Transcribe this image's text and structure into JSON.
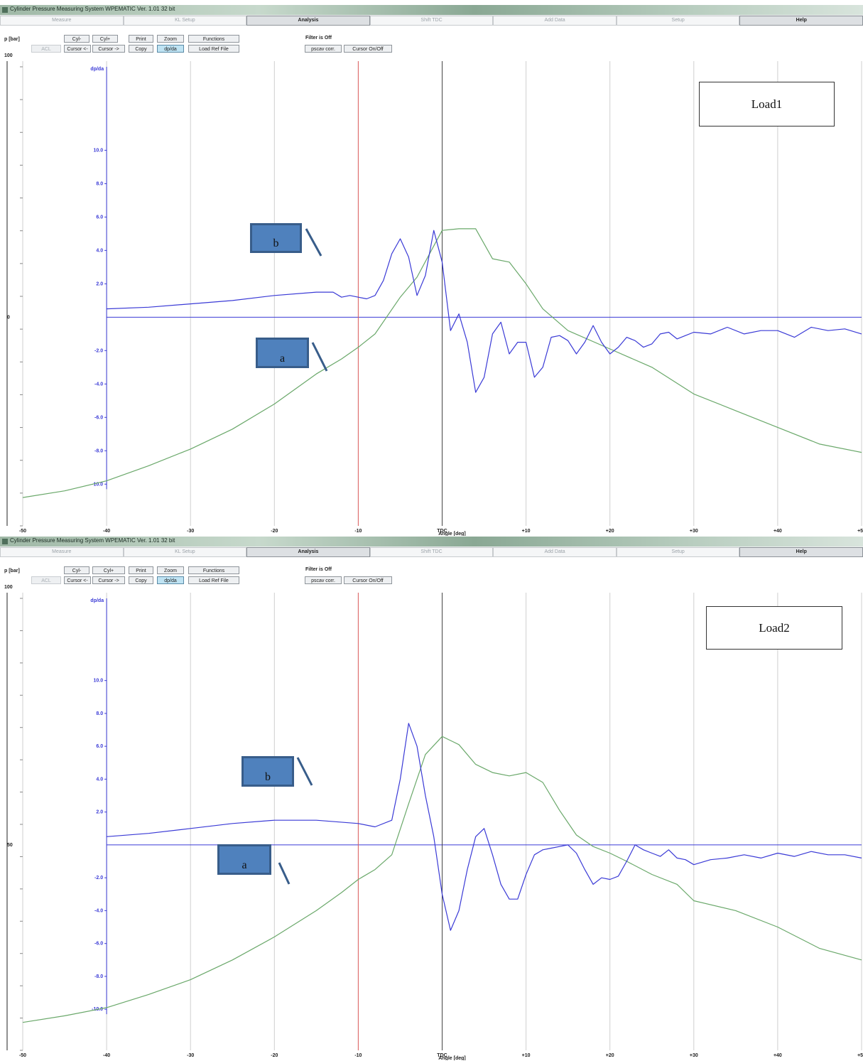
{
  "window_title": "Cylinder Pressure Measuring System WPEMATIC Ver. 1.01 32 bit",
  "tabs": [
    "Measure",
    "KL Setup",
    "Analysis",
    "Shift TDC",
    "Add Data",
    "Setup",
    "Help"
  ],
  "active_tab": "Analysis",
  "toolbar": {
    "y_label": "p [bar]",
    "y_max": "100",
    "buttons_row1": [
      "Cyl-",
      "Cyl+",
      "Print",
      "Zoom",
      "Functions"
    ],
    "buttons_row2": [
      "ACL",
      "Cursor <-",
      "Cursor ->",
      "Copy",
      "dp/da",
      "Load Ref File"
    ],
    "filter_label": "Filter is Off",
    "buttons_row3": [
      "pscav corr.",
      "Cursor On/Off"
    ]
  },
  "chart_data": [
    {
      "type": "line",
      "legend_box": "Load1",
      "xlabel": "Angle [deg]",
      "x_ticks": [
        "-50",
        "-40",
        "-30",
        "-20",
        "-10",
        "TDC",
        "+10",
        "+20",
        "+30",
        "+40",
        "+50"
      ],
      "secondary_axis_title": "dp/da",
      "secondary_ticks": [
        "10.0",
        "8.0",
        "6.0",
        "4.0",
        "2.0",
        "-2.0",
        "-4.0",
        "-6.0",
        "-8.0",
        "-10.0"
      ],
      "pressure_axis_mid_label": "0",
      "xlim": [
        -50,
        50
      ],
      "ylim": [
        -12.5,
        15
      ],
      "red_cursor_x": -10,
      "tdc_line_x": 0,
      "grid": true,
      "colors": {
        "pressure": "#6aa86a",
        "dp_da": "#3a3ad6",
        "cursor": "#e06060",
        "tdc": "#444444",
        "grid": "#cfcfcf",
        "axis": "#3a3ad6"
      },
      "series": [
        {
          "x": [
            -50,
            -45,
            -40,
            -35,
            -30,
            -25,
            -20,
            -15,
            -12,
            -10,
            -8,
            -5,
            -3,
            0,
            2,
            4,
            6,
            8,
            10,
            12,
            15,
            20,
            25,
            30,
            35,
            40,
            45,
            50
          ],
          "y": [
            -10.8,
            -10.4,
            -9.8,
            -8.9,
            -7.9,
            -6.7,
            -5.2,
            -3.4,
            -2.5,
            -1.8,
            -1.0,
            1.2,
            2.4,
            5.2,
            5.3,
            5.3,
            3.5,
            3.3,
            2.0,
            0.5,
            -0.8,
            -1.9,
            -3.0,
            -4.6,
            -5.6,
            -6.6,
            -7.6,
            -8.1
          ]
        },
        {
          "x": [
            -40,
            -35,
            -30,
            -25,
            -20,
            -15,
            -13,
            -12,
            -11,
            -10,
            -9,
            -8,
            -7,
            -6,
            -5,
            -4,
            -3,
            -2,
            -1,
            0,
            1,
            2,
            3,
            4,
            5,
            6,
            7,
            8,
            9,
            10,
            11,
            12,
            13,
            14,
            15,
            16,
            17,
            18,
            19,
            20,
            21,
            22,
            23,
            24,
            25,
            26,
            27,
            28,
            29,
            30,
            32,
            34,
            36,
            38,
            40,
            42,
            44,
            46,
            48,
            50
          ],
          "y": [
            0.5,
            0.6,
            0.8,
            1.0,
            1.3,
            1.5,
            1.5,
            1.2,
            1.3,
            1.2,
            1.1,
            1.3,
            2.2,
            3.8,
            4.7,
            3.6,
            1.3,
            2.5,
            5.2,
            3.3,
            -0.8,
            0.2,
            -1.5,
            -4.5,
            -3.6,
            -1.0,
            -0.3,
            -2.2,
            -1.5,
            -1.5,
            -3.6,
            -3.0,
            -1.2,
            -1.1,
            -1.4,
            -2.2,
            -1.5,
            -0.5,
            -1.5,
            -2.2,
            -1.8,
            -1.2,
            -1.4,
            -1.8,
            -1.6,
            -1.0,
            -0.9,
            -1.3,
            -1.1,
            -0.9,
            -1.0,
            -0.6,
            -1.0,
            -0.8,
            -0.8,
            -1.2,
            -0.6,
            -0.8,
            -0.7,
            -1.0
          ]
        }
      ],
      "callouts": [
        "b",
        "a"
      ]
    },
    {
      "type": "line",
      "legend_box": "Load2",
      "xlabel": "Angle [deg]",
      "x_ticks": [
        "-50",
        "-40",
        "-30",
        "-20",
        "-10",
        "TDC",
        "+10",
        "+20",
        "+30",
        "+40",
        "+50"
      ],
      "secondary_axis_title": "dp/da",
      "secondary_ticks": [
        "10.0",
        "8.0",
        "6.0",
        "4.0",
        "2.0",
        "-2.0",
        "-4.0",
        "-6.0",
        "-8.0",
        "-10.0"
      ],
      "pressure_axis_mid_label": "50",
      "xlim": [
        -50,
        50
      ],
      "ylim": [
        -12.5,
        15
      ],
      "red_cursor_x": -10,
      "tdc_line_x": 0,
      "grid": true,
      "colors": {
        "pressure": "#6aa86a",
        "dp_da": "#3a3ad6",
        "cursor": "#e06060",
        "tdc": "#444444",
        "grid": "#cfcfcf",
        "axis": "#3a3ad6"
      },
      "series": [
        {
          "x": [
            -50,
            -45,
            -40,
            -35,
            -30,
            -25,
            -20,
            -15,
            -12,
            -10,
            -8,
            -6,
            -4,
            -2,
            0,
            2,
            4,
            6,
            8,
            10,
            12,
            14,
            16,
            18,
            20,
            22,
            25,
            28,
            30,
            35,
            40,
            45,
            50
          ],
          "y": [
            -10.8,
            -10.4,
            -9.9,
            -9.1,
            -8.2,
            -7.0,
            -5.6,
            -4.0,
            -2.9,
            -2.1,
            -1.5,
            -0.6,
            2.5,
            5.5,
            6.6,
            6.1,
            4.9,
            4.4,
            4.2,
            4.4,
            3.8,
            2.1,
            0.6,
            -0.1,
            -0.5,
            -1.0,
            -1.8,
            -2.4,
            -3.4,
            -4.0,
            -5.0,
            -6.3,
            -7.0
          ]
        },
        {
          "x": [
            -40,
            -35,
            -30,
            -25,
            -20,
            -15,
            -10,
            -8,
            -6,
            -5,
            -4,
            -3,
            -2,
            -1,
            0,
            1,
            2,
            3,
            4,
            5,
            6,
            7,
            8,
            9,
            10,
            11,
            12,
            13,
            14,
            15,
            16,
            17,
            18,
            19,
            20,
            21,
            22,
            23,
            24,
            25,
            26,
            27,
            28,
            29,
            30,
            32,
            34,
            36,
            38,
            40,
            42,
            44,
            46,
            48,
            50
          ],
          "y": [
            0.5,
            0.7,
            1.0,
            1.3,
            1.5,
            1.5,
            1.3,
            1.1,
            1.5,
            4.0,
            7.4,
            6.0,
            3.0,
            0.5,
            -3.0,
            -5.2,
            -4.0,
            -1.5,
            0.5,
            1.0,
            -0.6,
            -2.4,
            -3.3,
            -3.3,
            -1.8,
            -0.6,
            -0.3,
            -0.2,
            -0.1,
            0.0,
            -0.5,
            -1.5,
            -2.4,
            -2.0,
            -2.1,
            -1.9,
            -1.0,
            0.0,
            -0.3,
            -0.5,
            -0.7,
            -0.3,
            -0.8,
            -0.9,
            -1.2,
            -0.9,
            -0.8,
            -0.6,
            -0.8,
            -0.5,
            -0.7,
            -0.4,
            -0.6,
            -0.6,
            -0.8
          ]
        }
      ],
      "callouts": [
        "b",
        "a"
      ]
    }
  ]
}
